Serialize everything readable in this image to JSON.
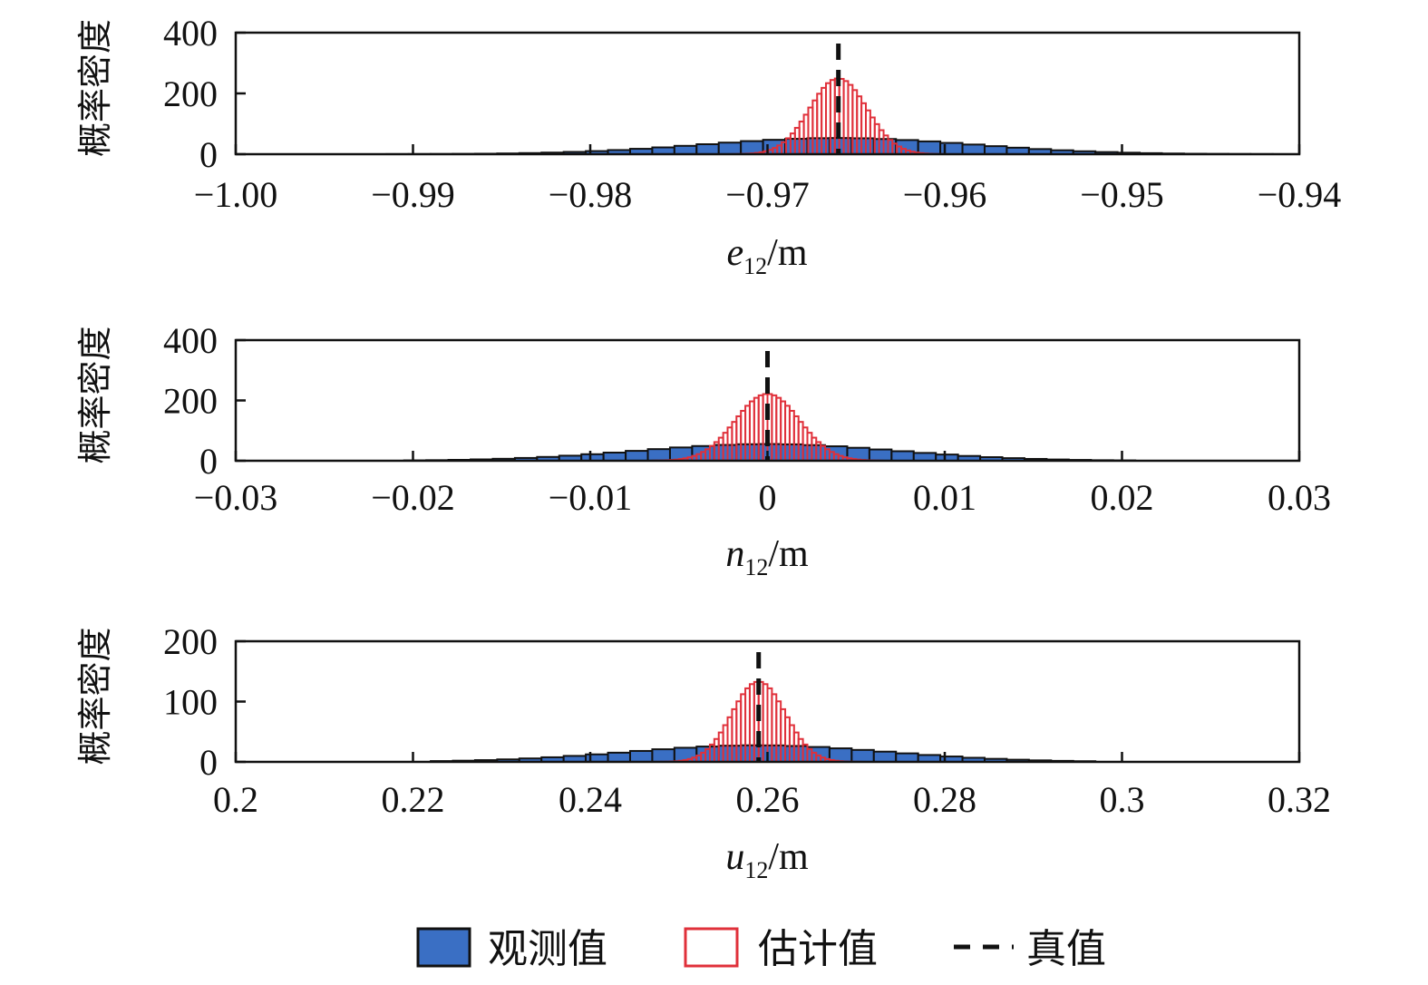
{
  "legend": {
    "observed": "观测值",
    "estimated": "估计值",
    "truth": "真值"
  },
  "colors": {
    "observed_fill": "#3a6fc4",
    "observed_edge": "#111111",
    "estimated_edge": "#e0303a",
    "truth_line": "#111111"
  },
  "chart_data": [
    {
      "type": "bar",
      "panel": "e",
      "ylabel": "概率密度",
      "xlabel_var": "e",
      "xlabel_sub": "12",
      "xlabel_unit": "/m",
      "xlim": [
        -1.0,
        -0.94
      ],
      "ylim": [
        0,
        400
      ],
      "xticks": [
        -1.0,
        -0.99,
        -0.98,
        -0.97,
        -0.96,
        -0.95,
        -0.94
      ],
      "xtick_labels": [
        "−1.00",
        "−0.99",
        "−0.98",
        "−0.97",
        "−0.96",
        "−0.95",
        "−0.94"
      ],
      "yticks": [
        0,
        200,
        400
      ],
      "ytick_labels": [
        "0",
        "200",
        "400"
      ],
      "truth": -0.966,
      "observed": {
        "mean": -0.966,
        "sd": 0.0075,
        "bin_width": 0.00125,
        "range": [
          -0.9915,
          -0.9405
        ]
      },
      "estimated": {
        "mean": -0.966,
        "sd": 0.0016,
        "bin_width": 0.00025,
        "range": [
          -0.9722,
          -0.9595
        ]
      }
    },
    {
      "type": "bar",
      "panel": "n",
      "ylabel": "概率密度",
      "xlabel_var": "n",
      "xlabel_sub": "12",
      "xlabel_unit": "/m",
      "xlim": [
        -0.03,
        0.03
      ],
      "ylim": [
        0,
        400
      ],
      "xticks": [
        -0.03,
        -0.02,
        -0.01,
        0,
        0.01,
        0.02,
        0.03
      ],
      "xtick_labels": [
        "−0.03",
        "−0.02",
        "−0.01",
        "0",
        "0.01",
        "0.02",
        "0.03"
      ],
      "yticks": [
        0,
        200,
        400
      ],
      "ytick_labels": [
        "0",
        "200",
        "400"
      ],
      "truth": 0.0,
      "observed": {
        "mean": 0.0,
        "sd": 0.0072,
        "bin_width": 0.00125,
        "range": [
          -0.0205,
          0.0205
        ]
      },
      "estimated": {
        "mean": 0.0,
        "sd": 0.0018,
        "bin_width": 0.00025,
        "range": [
          -0.0065,
          0.0065
        ]
      }
    },
    {
      "type": "bar",
      "panel": "u",
      "ylabel": "概率密度",
      "xlabel_var": "u",
      "xlabel_sub": "12",
      "xlabel_unit": "/m",
      "xlim": [
        0.2,
        0.32
      ],
      "ylim": [
        0,
        200
      ],
      "xticks": [
        0.2,
        0.22,
        0.24,
        0.26,
        0.28,
        0.3,
        0.32
      ],
      "xtick_labels": [
        "0.2",
        "0.22",
        "0.24",
        "0.26",
        "0.28",
        "0.3",
        "0.32"
      ],
      "yticks": [
        0,
        100,
        200
      ],
      "ytick_labels": [
        "0",
        "100",
        "200"
      ],
      "truth": 0.259,
      "observed": {
        "mean": 0.259,
        "sd": 0.0145,
        "bin_width": 0.0025,
        "range": [
          0.222,
          0.296
        ]
      },
      "estimated": {
        "mean": 0.259,
        "sd": 0.003,
        "bin_width": 0.0005,
        "range": [
          0.2465,
          0.271
        ]
      }
    }
  ]
}
